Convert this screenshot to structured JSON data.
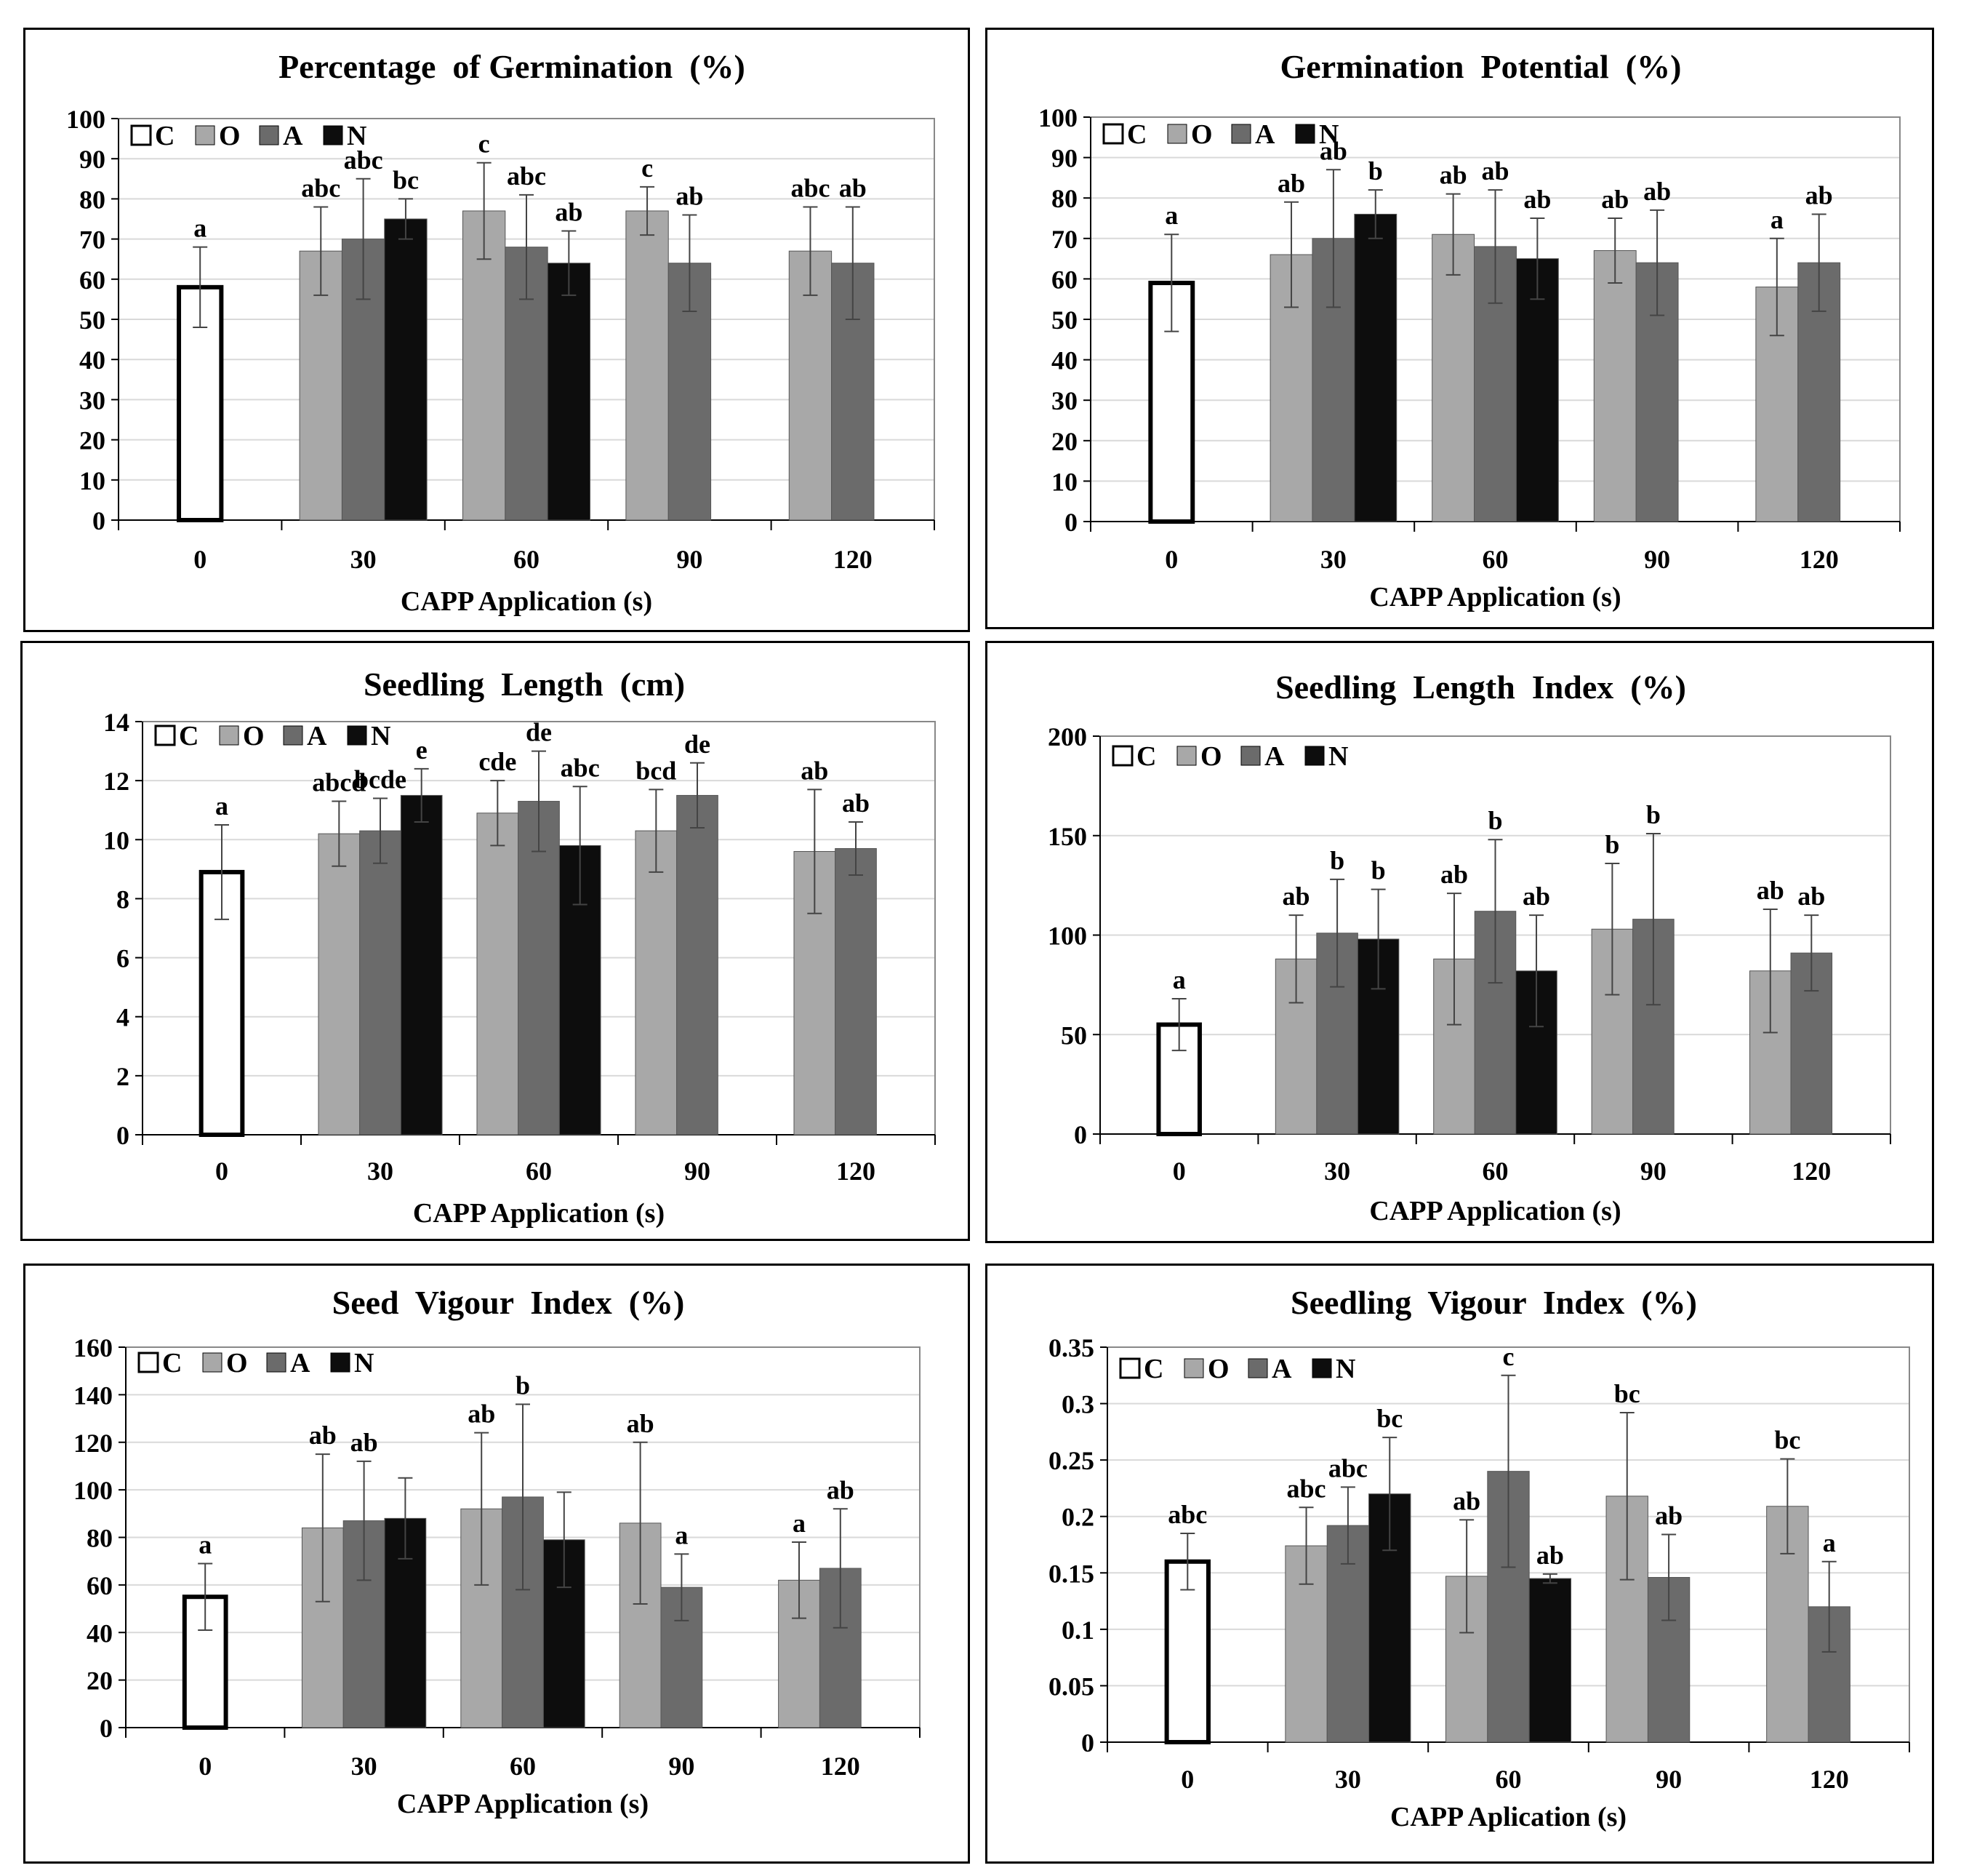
{
  "colors": {
    "C": "#ffffff",
    "O": "#a8a8a8",
    "A": "#6b6b6b",
    "N": "#0d0d0d"
  },
  "chart_data": [
    {
      "type": "bar",
      "title": "Percentage  of Germination  (%)",
      "xlabel": "CAPP Application (s)",
      "ylabel": "",
      "ylim": [
        0,
        100
      ],
      "yticks": [
        0,
        10,
        20,
        30,
        40,
        50,
        60,
        70,
        80,
        90,
        100
      ],
      "categories": [
        "0",
        "30",
        "60",
        "90",
        "120"
      ],
      "legend": [
        "C",
        "O",
        "A",
        "N"
      ],
      "legend_position": "top-left",
      "grid": true,
      "bars": [
        {
          "cat": 0,
          "series": "C",
          "value": 58,
          "err": 10,
          "label": "a"
        },
        {
          "cat": 1,
          "series": "O",
          "value": 67,
          "err": 11,
          "label": "abc"
        },
        {
          "cat": 1,
          "series": "A",
          "value": 70,
          "err": 15,
          "label": "abc"
        },
        {
          "cat": 1,
          "series": "N",
          "value": 75,
          "err": 5,
          "label": "bc"
        },
        {
          "cat": 2,
          "series": "O",
          "value": 77,
          "err": 12,
          "label": "c"
        },
        {
          "cat": 2,
          "series": "A",
          "value": 68,
          "err": 13,
          "label": "abc"
        },
        {
          "cat": 2,
          "series": "N",
          "value": 64,
          "err": 8,
          "label": "ab"
        },
        {
          "cat": 3,
          "series": "O",
          "value": 77,
          "err": 6,
          "label": "c"
        },
        {
          "cat": 3,
          "series": "A",
          "value": 64,
          "err": 12,
          "label": "ab"
        },
        {
          "cat": 4,
          "series": "O",
          "value": 67,
          "err": 11,
          "label": "abc"
        },
        {
          "cat": 4,
          "series": "A",
          "value": 64,
          "err": 14,
          "label": "ab"
        }
      ]
    },
    {
      "type": "bar",
      "title": "Germination  Potential  (%)",
      "xlabel": "CAPP Application (s)",
      "ylabel": "",
      "ylim": [
        0,
        100
      ],
      "yticks": [
        0,
        10,
        20,
        30,
        40,
        50,
        60,
        70,
        80,
        90,
        100
      ],
      "categories": [
        "0",
        "30",
        "60",
        "90",
        "120"
      ],
      "legend": [
        "C",
        "O",
        "A",
        "N"
      ],
      "legend_position": "top-left",
      "grid": true,
      "bars": [
        {
          "cat": 0,
          "series": "C",
          "value": 59,
          "err": 12,
          "label": "a"
        },
        {
          "cat": 1,
          "series": "O",
          "value": 66,
          "err": 13,
          "label": "ab"
        },
        {
          "cat": 1,
          "series": "A",
          "value": 70,
          "err": 17,
          "label": "ab"
        },
        {
          "cat": 1,
          "series": "N",
          "value": 76,
          "err": 6,
          "label": "b"
        },
        {
          "cat": 2,
          "series": "O",
          "value": 71,
          "err": 10,
          "label": "ab"
        },
        {
          "cat": 2,
          "series": "A",
          "value": 68,
          "err": 14,
          "label": "ab"
        },
        {
          "cat": 2,
          "series": "N",
          "value": 65,
          "err": 10,
          "label": "ab"
        },
        {
          "cat": 3,
          "series": "O",
          "value": 67,
          "err": 8,
          "label": "ab"
        },
        {
          "cat": 3,
          "series": "A",
          "value": 64,
          "err": 13,
          "label": "ab"
        },
        {
          "cat": 4,
          "series": "O",
          "value": 58,
          "err": 12,
          "label": "a"
        },
        {
          "cat": 4,
          "series": "A",
          "value": 64,
          "err": 12,
          "label": "ab"
        }
      ]
    },
    {
      "type": "bar",
      "title": "Seedling  Length  (cm)",
      "xlabel": "CAPP Application (s)",
      "ylabel": "",
      "ylim": [
        0,
        14
      ],
      "yticks": [
        0,
        2,
        4,
        6,
        8,
        10,
        12,
        14
      ],
      "categories": [
        "0",
        "30",
        "60",
        "90",
        "120"
      ],
      "legend": [
        "C",
        "O",
        "A",
        "N"
      ],
      "legend_position": "top-left",
      "grid": true,
      "bars": [
        {
          "cat": 0,
          "series": "C",
          "value": 8.9,
          "err": 1.6,
          "label": "a"
        },
        {
          "cat": 1,
          "series": "O",
          "value": 10.2,
          "err": 1.1,
          "label": "abcd"
        },
        {
          "cat": 1,
          "series": "A",
          "value": 10.3,
          "err": 1.1,
          "label": "bcde"
        },
        {
          "cat": 1,
          "series": "N",
          "value": 11.5,
          "err": 0.9,
          "label": "e"
        },
        {
          "cat": 2,
          "series": "O",
          "value": 10.9,
          "err": 1.1,
          "label": "cde"
        },
        {
          "cat": 2,
          "series": "A",
          "value": 11.3,
          "err": 1.7,
          "label": "de"
        },
        {
          "cat": 2,
          "series": "N",
          "value": 9.8,
          "err": 2.0,
          "label": "abc"
        },
        {
          "cat": 3,
          "series": "O",
          "value": 10.3,
          "err": 1.4,
          "label": "bcd"
        },
        {
          "cat": 3,
          "series": "A",
          "value": 11.5,
          "err": 1.1,
          "label": "de"
        },
        {
          "cat": 4,
          "series": "O",
          "value": 9.6,
          "err": 2.1,
          "label": "ab"
        },
        {
          "cat": 4,
          "series": "A",
          "value": 9.7,
          "err": 0.9,
          "label": "ab"
        }
      ]
    },
    {
      "type": "bar",
      "title": "Seedling  Length  Index  (%)",
      "xlabel": "CAPP Application (s)",
      "ylabel": "",
      "ylim": [
        0,
        200
      ],
      "yticks": [
        0,
        50,
        100,
        150,
        200
      ],
      "categories": [
        "0",
        "30",
        "60",
        "90",
        "120"
      ],
      "legend": [
        "C",
        "O",
        "A",
        "N"
      ],
      "legend_position": "top-left",
      "grid": true,
      "bars": [
        {
          "cat": 0,
          "series": "C",
          "value": 55,
          "err": 13,
          "label": "a"
        },
        {
          "cat": 1,
          "series": "O",
          "value": 88,
          "err": 22,
          "label": "ab"
        },
        {
          "cat": 1,
          "series": "A",
          "value": 101,
          "err": 27,
          "label": "b"
        },
        {
          "cat": 1,
          "series": "N",
          "value": 98,
          "err": 25,
          "label": "b"
        },
        {
          "cat": 2,
          "series": "O",
          "value": 88,
          "err": 33,
          "label": "ab"
        },
        {
          "cat": 2,
          "series": "A",
          "value": 112,
          "err": 36,
          "label": "b"
        },
        {
          "cat": 2,
          "series": "N",
          "value": 82,
          "err": 28,
          "label": "ab"
        },
        {
          "cat": 3,
          "series": "O",
          "value": 103,
          "err": 33,
          "label": "b"
        },
        {
          "cat": 3,
          "series": "A",
          "value": 108,
          "err": 43,
          "label": "b"
        },
        {
          "cat": 4,
          "series": "O",
          "value": 82,
          "err": 31,
          "label": "ab"
        },
        {
          "cat": 4,
          "series": "A",
          "value": 91,
          "err": 19,
          "label": "ab"
        }
      ]
    },
    {
      "type": "bar",
      "title": "Seed  Vigour  Index  (%)",
      "xlabel": "CAPP Application (s)",
      "ylabel": "",
      "ylim": [
        0,
        160
      ],
      "yticks": [
        0,
        20,
        40,
        60,
        80,
        100,
        120,
        140,
        160
      ],
      "categories": [
        "0",
        "30",
        "60",
        "90",
        "120"
      ],
      "legend": [
        "C",
        "O",
        "A",
        "N"
      ],
      "legend_position": "top-left",
      "grid": true,
      "bars": [
        {
          "cat": 0,
          "series": "C",
          "value": 55,
          "err": 14,
          "label": "a"
        },
        {
          "cat": 1,
          "series": "O",
          "value": 84,
          "err": 31,
          "label": "ab"
        },
        {
          "cat": 1,
          "series": "A",
          "value": 87,
          "err": 25,
          "label": "ab"
        },
        {
          "cat": 1,
          "series": "N",
          "value": 88,
          "err": 17,
          "label": ""
        },
        {
          "cat": 2,
          "series": "O",
          "value": 92,
          "err": 32,
          "label": "ab"
        },
        {
          "cat": 2,
          "series": "A",
          "value": 97,
          "err": 39,
          "label": "b"
        },
        {
          "cat": 2,
          "series": "N",
          "value": 79,
          "err": 20,
          "label": ""
        },
        {
          "cat": 3,
          "series": "O",
          "value": 86,
          "err": 34,
          "label": "ab"
        },
        {
          "cat": 3,
          "series": "A",
          "value": 59,
          "err": 14,
          "label": "a"
        },
        {
          "cat": 4,
          "series": "O",
          "value": 62,
          "err": 16,
          "label": "a"
        },
        {
          "cat": 4,
          "series": "A",
          "value": 67,
          "err": 25,
          "label": "ab"
        }
      ]
    },
    {
      "type": "bar",
      "title": "Seedling  Vigour  Index  (%)",
      "xlabel": "CAPP Aplication (s)",
      "ylabel": "",
      "ylim": [
        0,
        0.35
      ],
      "yticks": [
        0,
        0.05,
        0.1,
        0.15,
        0.2,
        0.25,
        0.3,
        0.35
      ],
      "categories": [
        "0",
        "30",
        "60",
        "90",
        "120"
      ],
      "legend": [
        "C",
        "O",
        "A",
        "N"
      ],
      "legend_position": "top-left",
      "grid": true,
      "bars": [
        {
          "cat": 0,
          "series": "C",
          "value": 0.16,
          "err": 0.025,
          "label": "abc"
        },
        {
          "cat": 1,
          "series": "O",
          "value": 0.174,
          "err": 0.034,
          "label": "abc"
        },
        {
          "cat": 1,
          "series": "A",
          "value": 0.192,
          "err": 0.034,
          "label": "abc"
        },
        {
          "cat": 1,
          "series": "N",
          "value": 0.22,
          "err": 0.05,
          "label": "bc"
        },
        {
          "cat": 2,
          "series": "O",
          "value": 0.147,
          "err": 0.05,
          "label": "ab"
        },
        {
          "cat": 2,
          "series": "A",
          "value": 0.24,
          "err": 0.085,
          "label": "c"
        },
        {
          "cat": 2,
          "series": "N",
          "value": 0.145,
          "err": 0.004,
          "label": "ab"
        },
        {
          "cat": 3,
          "series": "O",
          "value": 0.218,
          "err": 0.074,
          "label": "bc"
        },
        {
          "cat": 3,
          "series": "A",
          "value": 0.146,
          "err": 0.038,
          "label": "ab"
        },
        {
          "cat": 4,
          "series": "O",
          "value": 0.209,
          "err": 0.042,
          "label": "bc"
        },
        {
          "cat": 4,
          "series": "A",
          "value": 0.12,
          "err": 0.04,
          "label": "a"
        }
      ]
    }
  ]
}
